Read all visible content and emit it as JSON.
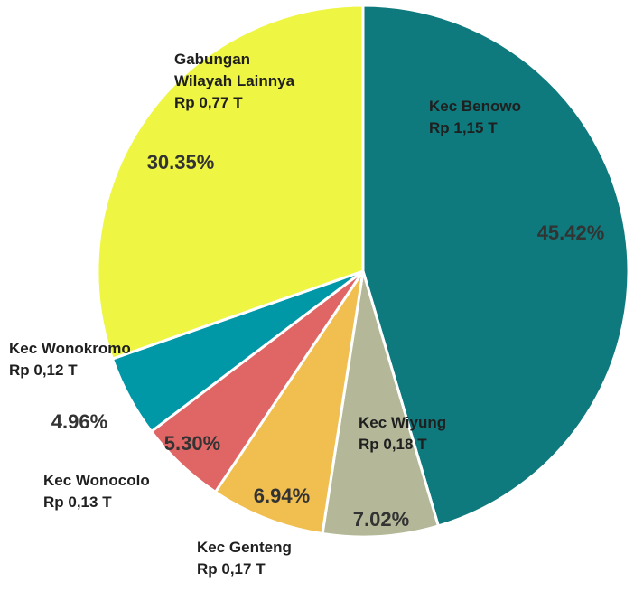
{
  "chart_data": {
    "type": "pie",
    "categories": [
      "Kec Benowo",
      "Kec Wiyung",
      "Kec Genteng",
      "Kec Wonocolo",
      "Kec Wonokromo",
      "Gabungan\nWilayah Lainnya"
    ],
    "amount_labels": [
      "Rp 1,15 T",
      "Rp 0,18 T",
      "Rp 0,17 T",
      "Rp 0,13 T",
      "Rp 0,12 T",
      "Rp 0,77 T"
    ],
    "values": [
      45.42,
      7.02,
      6.94,
      5.3,
      4.96,
      30.35
    ],
    "value_labels": [
      "45.42%",
      "7.02%",
      "6.94%",
      "5.30%",
      "4.96%",
      "30.35%"
    ],
    "colors": [
      "#0e7a7e",
      "#b4b898",
      "#f0bf4f",
      "#e06666",
      "#0097a7",
      "#eef542"
    ]
  }
}
